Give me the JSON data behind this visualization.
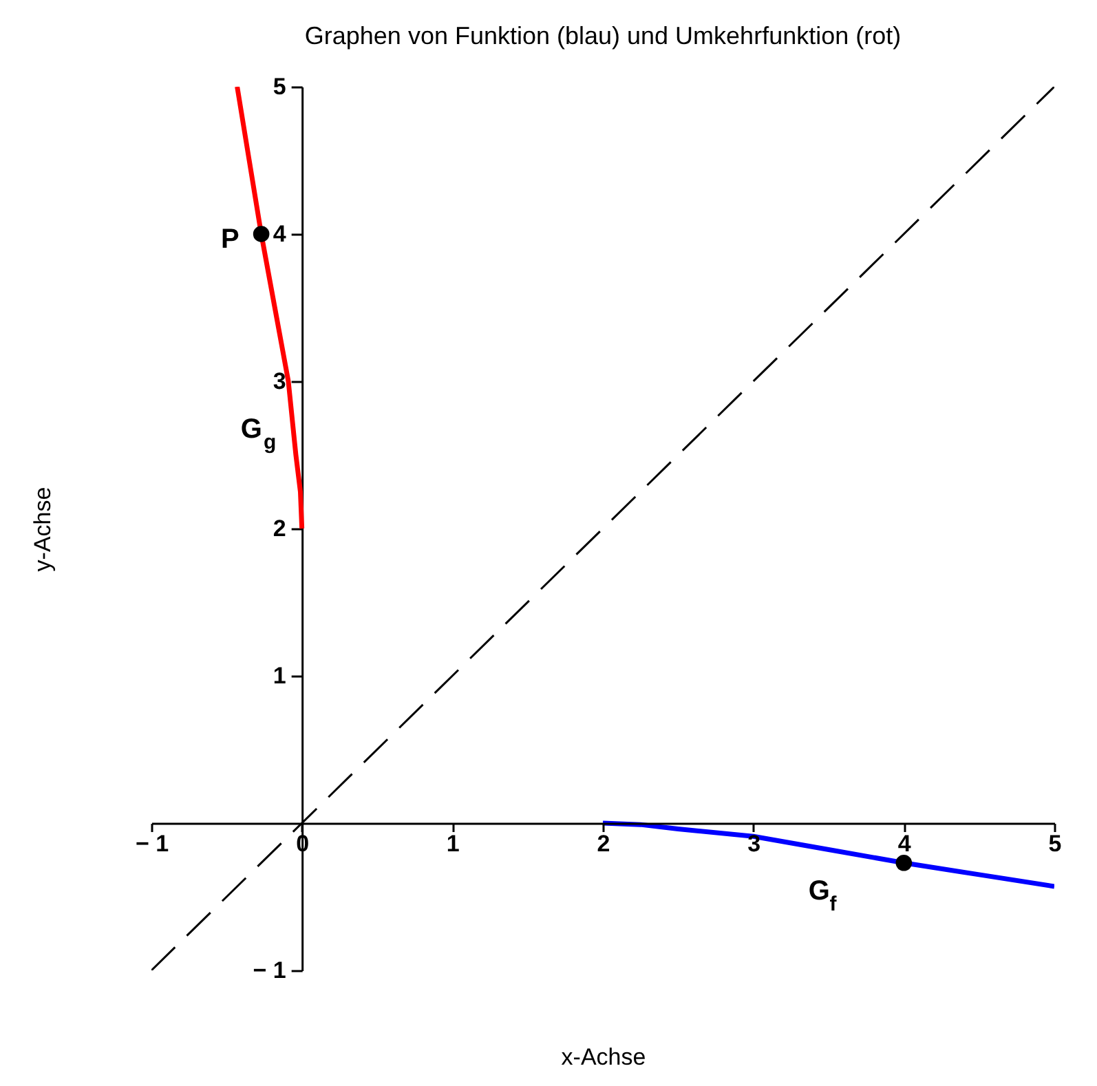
{
  "chart_data": {
    "type": "line",
    "title": "Graphen von Funktion (blau) und Umkehrfunktion (rot)",
    "xlabel": "x-Achse",
    "ylabel": "y-Achse",
    "xlim": [
      -1,
      5
    ],
    "ylim": [
      -1,
      5
    ],
    "xticks": [
      {
        "value": -1,
        "label": "− 1"
      },
      0,
      1,
      2,
      3,
      4,
      5
    ],
    "yticks": [
      {
        "value": -1,
        "label": "− 1"
      },
      1,
      2,
      3,
      4,
      5
    ],
    "grid": false,
    "series": [
      {
        "name": "G$_{f}$",
        "color": "#0000ff",
        "x": [
          2,
          2.25,
          2.5,
          3,
          3.5,
          4,
          4.5,
          5
        ],
        "values": [
          0,
          -0.01,
          -0.04,
          -0.09,
          -0.18,
          -0.27,
          -0.35,
          -0.43
        ]
      },
      {
        "name": "G$_{g}$",
        "color": "#ff0000",
        "x": [
          0,
          -0.01,
          -0.04,
          -0.09,
          -0.18,
          -0.27,
          -0.35,
          -0.43
        ],
        "values": [
          2,
          2.25,
          2.5,
          3,
          3.5,
          4,
          4.5,
          5
        ]
      },
      {
        "color": "#000000",
        "line_style": "dashed",
        "x": [
          -1,
          5
        ],
        "values": [
          -1,
          5
        ]
      },
      {
        "type": "scatter",
        "color": "#000000",
        "marker": "circle",
        "x": [
          4,
          -0.27
        ],
        "values": [
          -0.27,
          4
        ]
      }
    ],
    "annotations": [
      {
        "text": "P",
        "x": -0.27,
        "y": 4
      }
    ]
  }
}
